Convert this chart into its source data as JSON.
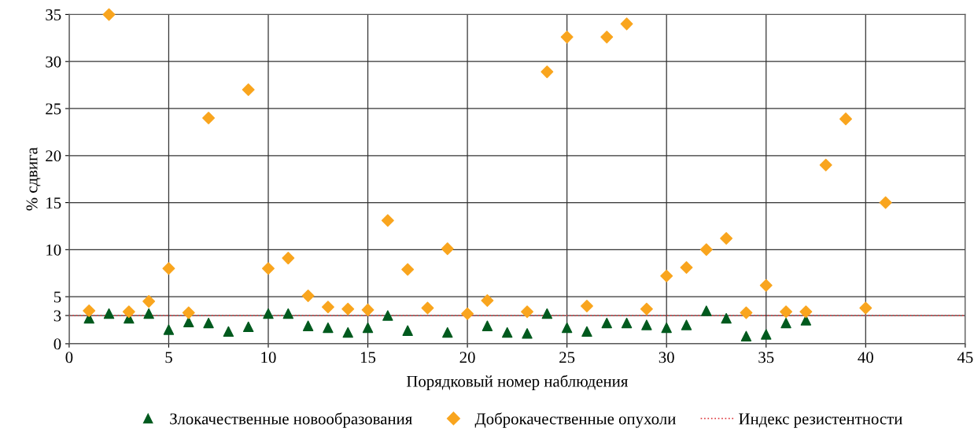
{
  "chart_data": {
    "type": "scatter",
    "xlabel": "Порядковый номер наблюдения",
    "ylabel": "% сдвига",
    "xlim": [
      0,
      45
    ],
    "xticks": [
      0,
      5,
      10,
      15,
      20,
      25,
      30,
      35,
      40,
      45
    ],
    "ylim": [
      0,
      35
    ],
    "yticks": [
      0,
      3,
      5,
      10,
      15,
      20,
      25,
      30,
      35
    ],
    "grid": true,
    "legend": "bottom",
    "series": [
      {
        "name": "Злокачественные новообразования",
        "color": "#005a1e",
        "marker": "triangle",
        "x": [
          1,
          2,
          3,
          4,
          5,
          6,
          7,
          8,
          9,
          10,
          11,
          12,
          13,
          14,
          15,
          16,
          17,
          19,
          21,
          22,
          23,
          24,
          25,
          26,
          27,
          28,
          29,
          30,
          31,
          32,
          33,
          34,
          35,
          36,
          37
        ],
        "values": [
          2.7,
          3.2,
          2.7,
          3.2,
          1.5,
          2.3,
          2.2,
          1.3,
          1.8,
          3.2,
          3.2,
          1.9,
          1.7,
          1.2,
          1.7,
          3.0,
          1.4,
          1.2,
          1.9,
          1.2,
          1.1,
          3.2,
          1.7,
          1.3,
          2.2,
          2.2,
          2.0,
          1.7,
          2.0,
          3.5,
          2.7,
          0.8,
          1.0,
          2.2,
          2.5
        ]
      },
      {
        "name": "Доброкачественные опухоли",
        "color": "#f9a51e",
        "marker": "diamond",
        "x": [
          1,
          2,
          3,
          4,
          5,
          6,
          7,
          9,
          10,
          11,
          12,
          13,
          14,
          15,
          16,
          17,
          18,
          19,
          20,
          21,
          23,
          24,
          25,
          26,
          27,
          28,
          29,
          30,
          31,
          32,
          33,
          34,
          35,
          36,
          37,
          38,
          39,
          40,
          41
        ],
        "values": [
          3.5,
          35,
          3.4,
          4.5,
          8.0,
          3.3,
          24.0,
          27.0,
          8.0,
          9.1,
          5.1,
          3.9,
          3.7,
          3.6,
          13.1,
          7.9,
          3.8,
          10.1,
          3.2,
          4.6,
          3.4,
          28.9,
          32.6,
          4.0,
          32.6,
          34.0,
          3.7,
          7.2,
          8.1,
          10.0,
          11.2,
          3.3,
          6.2,
          3.4,
          3.4,
          19.0,
          23.9,
          3.8,
          15.0
        ]
      }
    ],
    "ref_lines": [
      {
        "axis": "y",
        "value": 3,
        "label": "Индекс резистентности",
        "color": "#e0474c",
        "line_style": "dotted"
      }
    ]
  }
}
